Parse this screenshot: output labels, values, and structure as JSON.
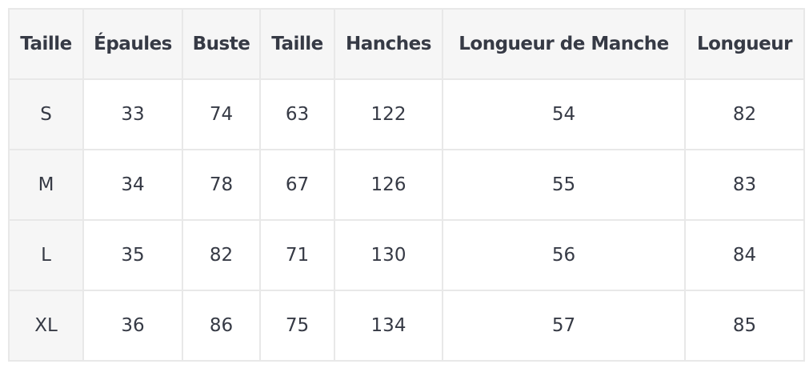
{
  "table": {
    "headers": [
      "Taille",
      "Épaules",
      "Buste",
      "Taille",
      "Hanches",
      "Longueur de Manche",
      "Longueur"
    ],
    "rows": [
      [
        "S",
        "33",
        "74",
        "63",
        "122",
        "54",
        "82"
      ],
      [
        "M",
        "34",
        "78",
        "67",
        "126",
        "55",
        "83"
      ],
      [
        "L",
        "35",
        "82",
        "71",
        "130",
        "56",
        "84"
      ],
      [
        "XL",
        "36",
        "86",
        "75",
        "134",
        "57",
        "85"
      ]
    ]
  }
}
